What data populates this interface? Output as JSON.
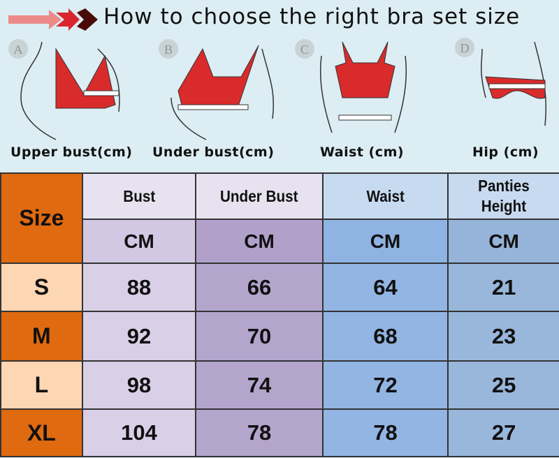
{
  "header": {
    "title": "How to choose the right bra set size"
  },
  "figures": [
    {
      "letter": "A",
      "caption": "Upper bust(cm)"
    },
    {
      "letter": "B",
      "caption": "Under bust(cm)"
    },
    {
      "letter": "C",
      "caption": "Waist (cm)"
    },
    {
      "letter": "D",
      "caption": "Hip (cm)"
    }
  ],
  "table": {
    "size_label": "Size",
    "columns": [
      "Bust",
      "Under Bust",
      "Waist",
      "Panties Height"
    ],
    "unit": "CM",
    "rows": [
      {
        "size": "S",
        "values": [
          "88",
          "66",
          "64",
          "21"
        ]
      },
      {
        "size": "M",
        "values": [
          "92",
          "70",
          "68",
          "23"
        ]
      },
      {
        "size": "L",
        "values": [
          "98",
          "74",
          "72",
          "25"
        ]
      },
      {
        "size": "XL",
        "values": [
          "104",
          "78",
          "78",
          "27"
        ]
      }
    ]
  },
  "colors": {
    "orange": "#e06a10",
    "peach": "#fdd6b3",
    "bra_red": "#d92b2b"
  }
}
